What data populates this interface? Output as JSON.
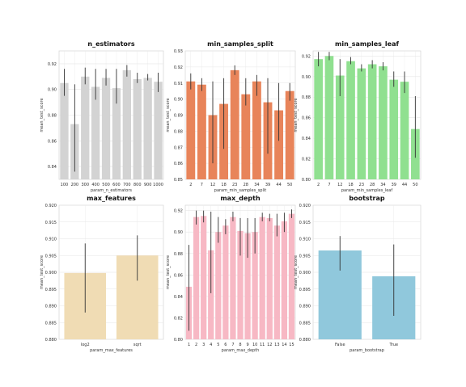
{
  "chart_data": [
    {
      "type": "bar",
      "title": "n_estimators",
      "xlabel": "param_n_estimators",
      "ylabel": "mean_test_score",
      "color": "#d3d3d3",
      "grid": true,
      "ylim": [
        0.83,
        0.93
      ],
      "yticks": [
        0.84,
        0.86,
        0.88,
        0.9,
        0.92
      ],
      "ytick_labels": [
        "0.84",
        "0.86",
        "0.88",
        "0.90",
        "0.92"
      ],
      "categories": [
        "100",
        "200",
        "300",
        "400",
        "500",
        "600",
        "700",
        "800",
        "900",
        "1000"
      ],
      "values": [
        0.905,
        0.873,
        0.91,
        0.902,
        0.909,
        0.901,
        0.915,
        0.908,
        0.909,
        0.906
      ],
      "err_low": [
        0.895,
        0.836,
        0.904,
        0.892,
        0.903,
        0.889,
        0.91,
        0.905,
        0.907,
        0.898
      ],
      "err_high": [
        0.916,
        0.904,
        0.917,
        0.916,
        0.916,
        0.916,
        0.919,
        0.913,
        0.912,
        0.913
      ]
    },
    {
      "type": "bar",
      "title": "min_samples_split",
      "xlabel": "param_min_samples_split",
      "ylabel": "mean_test_score",
      "color": "#e8845a",
      "grid": true,
      "ylim": [
        0.85,
        0.93
      ],
      "yticks": [
        0.85,
        0.86,
        0.87,
        0.88,
        0.89,
        0.9,
        0.91,
        0.92,
        0.93
      ],
      "ytick_labels": [
        "0.85",
        "0.86",
        "0.87",
        "0.88",
        "0.89",
        "0.90",
        "0.91",
        "0.92",
        "0.93"
      ],
      "categories": [
        "2",
        "7",
        "12",
        "18",
        "23",
        "28",
        "34",
        "39",
        "44",
        "50"
      ],
      "values": [
        0.911,
        0.909,
        0.89,
        0.897,
        0.918,
        0.903,
        0.911,
        0.898,
        0.893,
        0.905
      ],
      "err_low": [
        0.906,
        0.905,
        0.86,
        0.869,
        0.915,
        0.896,
        0.902,
        0.866,
        0.874,
        0.899
      ],
      "err_high": [
        0.916,
        0.913,
        0.911,
        0.913,
        0.921,
        0.913,
        0.915,
        0.913,
        0.91,
        0.91
      ]
    },
    {
      "type": "bar",
      "title": "min_samples_leaf",
      "xlabel": "param_min_samples_leaf",
      "ylabel": "mean_test_score",
      "color": "#90e090",
      "grid": true,
      "ylim": [
        0.8,
        0.925
      ],
      "yticks": [
        0.8,
        0.82,
        0.84,
        0.86,
        0.88,
        0.9,
        0.92
      ],
      "ytick_labels": [
        "0.80",
        "0.82",
        "0.84",
        "0.86",
        "0.88",
        "0.90",
        "0.92"
      ],
      "categories": [
        "2",
        "7",
        "12",
        "18",
        "23",
        "28",
        "34",
        "39",
        "44",
        "50"
      ],
      "values": [
        0.917,
        0.92,
        0.901,
        0.915,
        0.908,
        0.912,
        0.91,
        0.897,
        0.895,
        0.849
      ],
      "err_low": [
        0.91,
        0.916,
        0.881,
        0.912,
        0.905,
        0.908,
        0.906,
        0.89,
        0.884,
        0.821
      ],
      "err_high": [
        0.924,
        0.924,
        0.917,
        0.919,
        0.912,
        0.916,
        0.914,
        0.905,
        0.905,
        0.881
      ]
    },
    {
      "type": "bar",
      "title": "max_features",
      "xlabel": "param_max_features",
      "ylabel": "mean_test_score",
      "color": "#f0dcb4",
      "grid": true,
      "ylim": [
        0.88,
        0.92
      ],
      "yticks": [
        0.88,
        0.885,
        0.89,
        0.895,
        0.9,
        0.905,
        0.91,
        0.915,
        0.92
      ],
      "ytick_labels": [
        "0.880",
        "0.885",
        "0.890",
        "0.895",
        "0.900",
        "0.905",
        "0.910",
        "0.915",
        "0.920"
      ],
      "categories": [
        "log2",
        "sqrt"
      ],
      "values": [
        0.8998,
        0.905
      ],
      "err_low": [
        0.888,
        0.8975
      ],
      "err_high": [
        0.9086,
        0.911
      ]
    },
    {
      "type": "bar",
      "title": "max_depth",
      "xlabel": "param_max_depth",
      "ylabel": "mean_test_score",
      "color": "#f7b8c4",
      "grid": true,
      "ylim": [
        0.8,
        0.925
      ],
      "yticks": [
        0.8,
        0.82,
        0.84,
        0.86,
        0.88,
        0.9,
        0.92
      ],
      "ytick_labels": [
        "0.80",
        "0.82",
        "0.84",
        "0.86",
        "0.88",
        "0.90",
        "0.92"
      ],
      "categories": [
        "1",
        "2",
        "3",
        "4",
        "5",
        "6",
        "7",
        "8",
        "9",
        "10",
        "11",
        "12",
        "13",
        "14",
        "15"
      ],
      "values": [
        0.849,
        0.914,
        0.915,
        0.883,
        0.9,
        0.906,
        0.914,
        0.901,
        0.899,
        0.9,
        0.914,
        0.913,
        0.906,
        0.91,
        0.917
      ],
      "err_low": [
        0.808,
        0.907,
        0.909,
        0.843,
        0.89,
        0.898,
        0.91,
        0.878,
        0.876,
        0.88,
        0.91,
        0.91,
        0.896,
        0.9,
        0.913
      ],
      "err_high": [
        0.888,
        0.92,
        0.92,
        0.919,
        0.914,
        0.912,
        0.919,
        0.913,
        0.913,
        0.913,
        0.918,
        0.917,
        0.917,
        0.918,
        0.921
      ]
    },
    {
      "type": "bar",
      "title": "bootstrap",
      "xlabel": "param_bootstrap",
      "ylabel": "mean_test_score",
      "color": "#90c8dc",
      "grid": true,
      "ylim": [
        0.88,
        0.92
      ],
      "yticks": [
        0.88,
        0.885,
        0.89,
        0.895,
        0.9,
        0.905,
        0.91,
        0.915,
        0.92
      ],
      "ytick_labels": [
        "0.880",
        "0.885",
        "0.890",
        "0.895",
        "0.900",
        "0.905",
        "0.910",
        "0.915",
        "0.920"
      ],
      "categories": [
        "False",
        "True"
      ],
      "values": [
        0.9065,
        0.8988
      ],
      "err_low": [
        0.9005,
        0.887
      ],
      "err_high": [
        0.9108,
        0.9083
      ]
    }
  ]
}
